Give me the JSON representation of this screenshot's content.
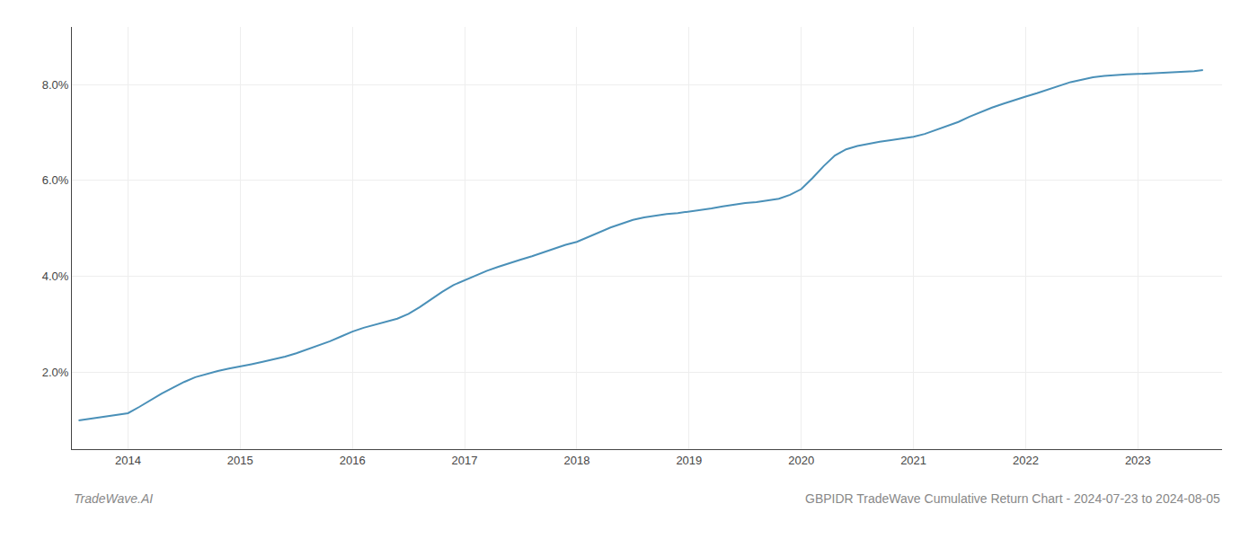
{
  "chart_data": {
    "type": "line",
    "title": "GBPIDR TradeWave Cumulative Return Chart - 2024-07-23 to 2024-08-05",
    "annotations": [
      "TradeWave.AI"
    ],
    "color": "#4a90b8",
    "grid": true,
    "x": [
      2013.56,
      2014.0,
      2014.1,
      2014.2,
      2014.3,
      2014.4,
      2014.5,
      2014.6,
      2014.7,
      2014.8,
      2014.9,
      2015.0,
      2015.1,
      2015.2,
      2015.3,
      2015.4,
      2015.5,
      2015.6,
      2015.7,
      2015.8,
      2015.9,
      2016.0,
      2016.1,
      2016.2,
      2016.3,
      2016.4,
      2016.5,
      2016.6,
      2016.7,
      2016.8,
      2016.9,
      2017.0,
      2017.1,
      2017.2,
      2017.3,
      2017.4,
      2017.5,
      2017.6,
      2017.7,
      2017.8,
      2017.9,
      2018.0,
      2018.1,
      2018.2,
      2018.3,
      2018.4,
      2018.5,
      2018.6,
      2018.7,
      2018.8,
      2018.9,
      2019.0,
      2019.1,
      2019.2,
      2019.3,
      2019.4,
      2019.5,
      2019.6,
      2019.7,
      2019.8,
      2019.9,
      2020.0,
      2020.1,
      2020.2,
      2020.3,
      2020.4,
      2020.5,
      2020.6,
      2020.7,
      2020.8,
      2020.9,
      2021.0,
      2021.1,
      2021.2,
      2021.3,
      2021.4,
      2021.5,
      2021.6,
      2021.7,
      2021.8,
      2021.9,
      2022.0,
      2022.1,
      2022.2,
      2022.3,
      2022.4,
      2022.5,
      2022.6,
      2022.7,
      2022.8,
      2022.9,
      2023.0,
      2023.1,
      2023.2,
      2023.3,
      2023.4,
      2023.5,
      2023.58
    ],
    "values": [
      1.0,
      1.15,
      1.28,
      1.42,
      1.56,
      1.68,
      1.8,
      1.9,
      1.97,
      2.03,
      2.08,
      2.12,
      2.17,
      2.22,
      2.27,
      2.33,
      2.4,
      2.48,
      2.57,
      2.65,
      2.75,
      2.85,
      2.93,
      2.99,
      3.05,
      3.12,
      3.22,
      3.36,
      3.52,
      3.68,
      3.82,
      3.92,
      4.02,
      4.12,
      4.2,
      4.28,
      4.35,
      4.42,
      4.5,
      4.58,
      4.66,
      4.72,
      4.82,
      4.92,
      5.02,
      5.1,
      5.18,
      5.23,
      5.27,
      5.3,
      5.32,
      5.35,
      5.38,
      5.42,
      5.46,
      5.5,
      5.53,
      5.55,
      5.58,
      5.62,
      5.7,
      5.82,
      6.05,
      6.3,
      6.52,
      6.65,
      6.72,
      6.77,
      6.81,
      6.84,
      6.88,
      6.91,
      6.97,
      7.05,
      7.13,
      7.22,
      7.33,
      7.43,
      7.52,
      7.6,
      7.68,
      7.75,
      7.82,
      7.9,
      7.98,
      8.05,
      8.1,
      8.15,
      8.18,
      8.2,
      8.21,
      8.22,
      8.23,
      8.24,
      8.25,
      8.26,
      8.28,
      8.3
    ],
    "xlim": [
      2013.5,
      2023.75
    ],
    "xticks": [
      2014,
      2015,
      2016,
      2017,
      2018,
      2019,
      2020,
      2021,
      2022,
      2023
    ],
    "ylim": [
      0.4,
      9.2
    ],
    "yticks": [
      {
        "value": 2.0,
        "label": "2.0%"
      },
      {
        "value": 4.0,
        "label": "4.0%"
      },
      {
        "value": 6.0,
        "label": "6.0%"
      },
      {
        "value": 8.0,
        "label": "8.0%"
      }
    ]
  }
}
